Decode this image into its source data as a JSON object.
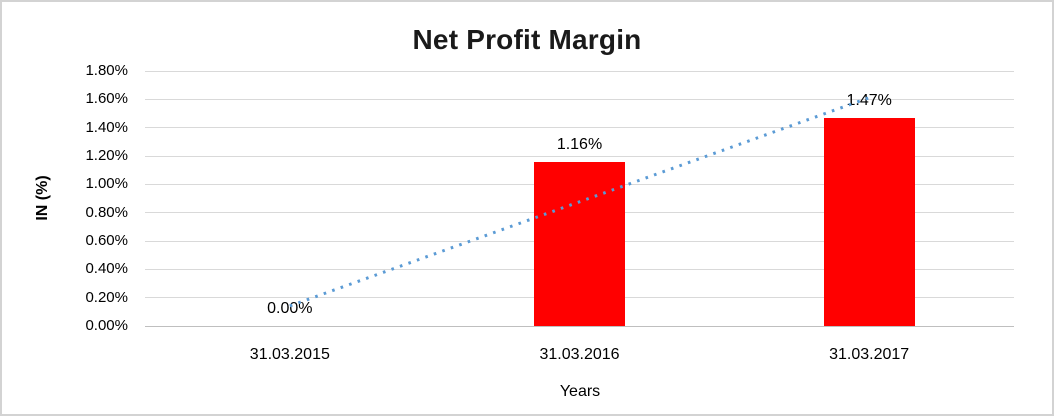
{
  "chart_data": {
    "type": "bar",
    "title": "Net Profit Margin",
    "xlabel": "Years",
    "ylabel": "IN (%)",
    "categories": [
      "31.03.2015",
      "31.03.2016",
      "31.03.2017"
    ],
    "values": [
      0.0,
      1.16,
      1.47
    ],
    "data_labels": [
      "0.00%",
      "1.16%",
      "1.47%"
    ],
    "y_ticks": [
      "0.00%",
      "0.20%",
      "0.40%",
      "0.60%",
      "0.80%",
      "1.00%",
      "1.20%",
      "1.40%",
      "1.60%",
      "1.80%"
    ],
    "ylim": [
      0,
      1.8
    ],
    "y_step": 0.2,
    "grid": true,
    "legend": "none",
    "bar_color": "#ff0000",
    "gridline_color": "#d9d9d9",
    "axis_line_color": "#bfbfbf",
    "trendline": {
      "type": "linear",
      "style": "dotted",
      "color": "#5b9bd5"
    }
  }
}
